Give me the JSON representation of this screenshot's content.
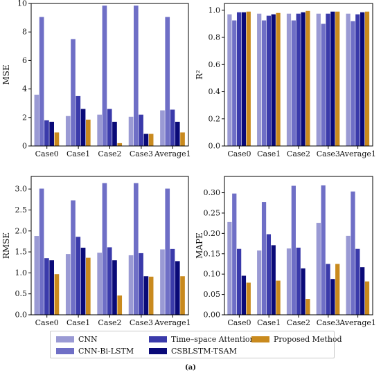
{
  "legend": {
    "items": [
      {
        "name": "CNN",
        "color": "#9a9ad4"
      },
      {
        "name": "CNN-Bi-LSTM",
        "color": "#6f6fc6"
      },
      {
        "name": "Time–space Attention",
        "color": "#3a3aaa"
      },
      {
        "name": "CSBLSTM-TSAM",
        "color": "#0a0a78"
      },
      {
        "name": "Proposed Method",
        "color": "#c98a1e"
      }
    ]
  },
  "caption": "(a)",
  "chart_data": [
    {
      "type": "bar",
      "ylabel": "MSE",
      "categories": [
        "Case0",
        "Case1",
        "Case2",
        "Case3",
        "Average1"
      ],
      "ylim": [
        0,
        10
      ],
      "yticks": [
        0,
        2,
        4,
        6,
        8,
        10
      ],
      "tick_format": 0,
      "series": [
        {
          "name": "CNN",
          "values": [
            3.6,
            2.1,
            2.2,
            2.05,
            2.5
          ]
        },
        {
          "name": "CNN-Bi-LSTM",
          "values": [
            9.05,
            7.5,
            9.85,
            9.85,
            9.05
          ]
        },
        {
          "name": "Time–space Attention",
          "values": [
            1.8,
            3.5,
            2.6,
            2.2,
            2.55
          ]
        },
        {
          "name": "CSBLSTM-TSAM",
          "values": [
            1.7,
            2.6,
            1.7,
            0.85,
            1.7
          ]
        },
        {
          "name": "Proposed Method",
          "values": [
            0.95,
            1.85,
            0.2,
            0.85,
            0.95
          ]
        }
      ]
    },
    {
      "type": "bar",
      "ylabel": "R²",
      "categories": [
        "Case0",
        "Case1",
        "Case2",
        "Case3",
        "Average1"
      ],
      "ylim": [
        0,
        1.05
      ],
      "yticks": [
        0,
        0.2,
        0.4,
        0.6,
        0.8,
        1.0
      ],
      "tick_format": 1,
      "series": [
        {
          "name": "CNN",
          "values": [
            0.97,
            0.975,
            0.975,
            0.975,
            0.975
          ]
        },
        {
          "name": "CNN-Bi-LSTM",
          "values": [
            0.925,
            0.925,
            0.925,
            0.9,
            0.92
          ]
        },
        {
          "name": "Time–space Attention",
          "values": [
            0.985,
            0.96,
            0.975,
            0.975,
            0.97
          ]
        },
        {
          "name": "CSBLSTM-TSAM",
          "values": [
            0.985,
            0.97,
            0.985,
            0.99,
            0.985
          ]
        },
        {
          "name": "Proposed Method",
          "values": [
            0.99,
            0.98,
            0.995,
            0.99,
            0.99
          ]
        }
      ]
    },
    {
      "type": "bar",
      "ylabel": "RMSE",
      "categories": [
        "Case0",
        "Case1",
        "Case2",
        "Case3",
        "Average1"
      ],
      "ylim": [
        0,
        3.3
      ],
      "yticks": [
        0,
        0.5,
        1.0,
        1.5,
        2.0,
        2.5,
        3.0
      ],
      "tick_format": 1,
      "series": [
        {
          "name": "CNN",
          "values": [
            1.88,
            1.45,
            1.48,
            1.42,
            1.56
          ]
        },
        {
          "name": "CNN-Bi-LSTM",
          "values": [
            3.01,
            2.73,
            3.14,
            3.14,
            3.01
          ]
        },
        {
          "name": "Time–space Attention",
          "values": [
            1.35,
            1.86,
            1.61,
            1.47,
            1.57
          ]
        },
        {
          "name": "CSBLSTM-TSAM",
          "values": [
            1.3,
            1.6,
            1.3,
            0.92,
            1.28
          ]
        },
        {
          "name": "Proposed Method",
          "values": [
            0.97,
            1.36,
            0.46,
            0.91,
            0.92
          ]
        }
      ]
    },
    {
      "type": "bar",
      "ylabel": "MAPE",
      "categories": [
        "Case0",
        "Case1",
        "Case2",
        "Case3",
        "Average1"
      ],
      "ylim": [
        0,
        0.34
      ],
      "yticks": [
        0,
        0.05,
        0.1,
        0.15,
        0.2,
        0.25,
        0.3
      ],
      "tick_format": 2,
      "series": [
        {
          "name": "CNN",
          "values": [
            0.228,
            0.158,
            0.163,
            0.226,
            0.194
          ]
        },
        {
          "name": "CNN-Bi-LSTM",
          "values": [
            0.298,
            0.277,
            0.317,
            0.318,
            0.303
          ]
        },
        {
          "name": "Time–space Attention",
          "values": [
            0.162,
            0.198,
            0.165,
            0.125,
            0.162
          ]
        },
        {
          "name": "CSBLSTM-TSAM",
          "values": [
            0.096,
            0.171,
            0.114,
            0.088,
            0.117
          ]
        },
        {
          "name": "Proposed Method",
          "values": [
            0.079,
            0.084,
            0.039,
            0.125,
            0.082
          ]
        }
      ]
    }
  ]
}
